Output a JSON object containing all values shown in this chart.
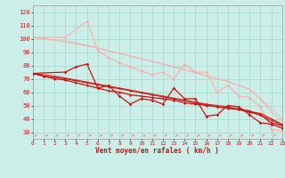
{
  "xlabel": "Vent moyen/en rafales ( km/h )",
  "xlim": [
    0,
    23
  ],
  "ylim": [
    25,
    125
  ],
  "yticks": [
    30,
    40,
    50,
    60,
    70,
    80,
    90,
    100,
    110,
    120
  ],
  "xticks": [
    0,
    1,
    2,
    3,
    4,
    5,
    6,
    7,
    8,
    9,
    10,
    11,
    12,
    13,
    14,
    15,
    16,
    17,
    18,
    19,
    20,
    21,
    22,
    23
  ],
  "bg_color": "#cceee8",
  "grid_color": "#aaddcc",
  "light_color": "#ffaaaa",
  "dark_color": "#cc1111",
  "arrow_color": "#ff7777",
  "series_light1": [
    [
      0,
      101
    ],
    [
      1,
      101
    ],
    [
      3,
      101
    ],
    [
      5,
      113
    ],
    [
      6,
      91
    ],
    [
      7,
      86
    ],
    [
      8,
      82
    ],
    [
      9,
      79
    ],
    [
      10,
      76
    ],
    [
      11,
      73
    ],
    [
      12,
      75
    ],
    [
      13,
      70
    ],
    [
      14,
      81
    ],
    [
      15,
      75
    ],
    [
      16,
      75
    ],
    [
      17,
      60
    ],
    [
      18,
      65
    ],
    [
      19,
      57
    ],
    [
      20,
      56
    ],
    [
      21,
      49
    ],
    [
      22,
      32
    ],
    [
      23,
      31
    ]
  ],
  "series_light2": [
    [
      0,
      101
    ],
    [
      1,
      100
    ],
    [
      2,
      99
    ],
    [
      3,
      98
    ],
    [
      4,
      97
    ],
    [
      5,
      95
    ],
    [
      6,
      93
    ],
    [
      7,
      91
    ],
    [
      8,
      89
    ],
    [
      9,
      87
    ],
    [
      10,
      85
    ],
    [
      11,
      83
    ],
    [
      12,
      81
    ],
    [
      13,
      79
    ],
    [
      14,
      77
    ],
    [
      15,
      75
    ],
    [
      16,
      72
    ],
    [
      17,
      70
    ],
    [
      18,
      68
    ],
    [
      19,
      65
    ],
    [
      20,
      62
    ],
    [
      21,
      55
    ],
    [
      22,
      45
    ],
    [
      23,
      38
    ]
  ],
  "series_light3": [
    [
      0,
      101
    ],
    [
      2,
      99
    ],
    [
      4,
      96
    ],
    [
      6,
      93
    ],
    [
      8,
      89
    ],
    [
      10,
      85
    ],
    [
      12,
      81
    ],
    [
      14,
      77
    ],
    [
      16,
      72
    ],
    [
      18,
      68
    ],
    [
      20,
      62
    ],
    [
      22,
      48
    ],
    [
      23,
      40
    ]
  ],
  "series_dark1": [
    [
      0,
      74
    ],
    [
      3,
      75
    ],
    [
      4,
      79
    ],
    [
      5,
      81
    ],
    [
      6,
      63
    ],
    [
      7,
      65
    ],
    [
      8,
      57
    ],
    [
      9,
      51
    ],
    [
      10,
      55
    ],
    [
      11,
      54
    ],
    [
      12,
      51
    ],
    [
      13,
      63
    ],
    [
      14,
      55
    ],
    [
      15,
      55
    ],
    [
      16,
      42
    ],
    [
      17,
      43
    ],
    [
      18,
      50
    ],
    [
      19,
      49
    ],
    [
      20,
      43
    ],
    [
      21,
      37
    ],
    [
      22,
      36
    ],
    [
      23,
      33
    ]
  ],
  "series_dark2": [
    [
      0,
      74
    ],
    [
      1,
      72
    ],
    [
      2,
      70
    ],
    [
      3,
      69
    ],
    [
      4,
      67
    ],
    [
      5,
      65
    ],
    [
      6,
      63
    ],
    [
      7,
      61
    ],
    [
      8,
      60
    ],
    [
      9,
      58
    ],
    [
      10,
      57
    ],
    [
      11,
      56
    ],
    [
      12,
      55
    ],
    [
      13,
      54
    ],
    [
      14,
      52
    ],
    [
      15,
      51
    ],
    [
      16,
      50
    ],
    [
      17,
      49
    ],
    [
      18,
      48
    ],
    [
      19,
      47
    ],
    [
      20,
      45
    ],
    [
      21,
      43
    ],
    [
      22,
      37
    ],
    [
      23,
      35
    ]
  ],
  "series_dark3": [
    [
      0,
      74
    ],
    [
      1,
      72
    ],
    [
      3,
      70
    ],
    [
      5,
      67
    ],
    [
      7,
      64
    ],
    [
      9,
      61
    ],
    [
      11,
      58
    ],
    [
      13,
      55
    ],
    [
      15,
      52
    ],
    [
      17,
      49
    ],
    [
      19,
      47
    ],
    [
      21,
      44
    ],
    [
      23,
      36
    ]
  ],
  "series_dark4": [
    [
      0,
      74
    ],
    [
      2,
      72
    ],
    [
      4,
      69
    ],
    [
      6,
      66
    ],
    [
      8,
      63
    ],
    [
      10,
      60
    ],
    [
      12,
      57
    ],
    [
      14,
      54
    ],
    [
      16,
      51
    ],
    [
      18,
      49
    ],
    [
      20,
      46
    ],
    [
      22,
      39
    ],
    [
      23,
      35
    ]
  ]
}
